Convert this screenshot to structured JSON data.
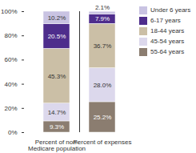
{
  "chart_data": {
    "type": "bar",
    "stacked": true,
    "data_labels": true,
    "legend": "right",
    "categories": [
      "Percent of non-Medicare population",
      "Percent of expenses"
    ],
    "ylim": [
      0,
      100
    ],
    "yticks": [
      {
        "value": 0,
        "label": "0%"
      },
      {
        "value": 20,
        "label": "20%"
      },
      {
        "value": 40,
        "label": "40%"
      },
      {
        "value": 60,
        "label": "60%"
      },
      {
        "value": 80,
        "label": "80%"
      },
      {
        "value": 100,
        "label": "100%"
      }
    ],
    "series": [
      {
        "name": "Under 6 years",
        "color": "#c9c3e2",
        "values": [
          10.2,
          2.1
        ],
        "value_labels": [
          "10.2%",
          "2.1%"
        ]
      },
      {
        "name": "6-17 years",
        "color": "#4e2d8c",
        "values": [
          20.5,
          7.9
        ],
        "value_labels": [
          "20.5%",
          "7.9%"
        ]
      },
      {
        "name": "18-44 years",
        "color": "#cbbfa6",
        "values": [
          45.3,
          36.7
        ],
        "value_labels": [
          "45.3%",
          "36.7%"
        ]
      },
      {
        "name": "45-54 years",
        "color": "#dcd8ec",
        "values": [
          14.7,
          28.0
        ],
        "value_labels": [
          "14.7%",
          "28.0%"
        ]
      },
      {
        "name": "55-64 years",
        "color": "#8b7d70",
        "values": [
          9.3,
          25.2
        ],
        "value_labels": [
          "9.3%",
          "25.2%"
        ]
      }
    ]
  }
}
